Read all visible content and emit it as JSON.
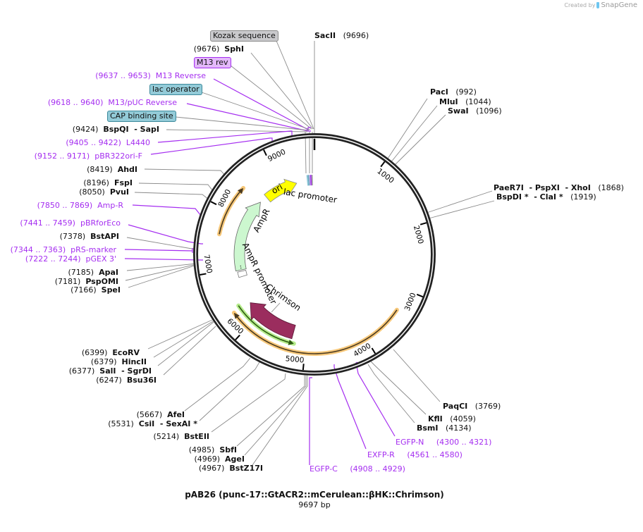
{
  "watermark": {
    "prefix": "Created by",
    "brand": "SnapGene"
  },
  "map": {
    "title": "pAB26 (punc-17::GtACR2::mCerulean::βHK::Chrimson)",
    "length": "9697 bp"
  },
  "ticks": [
    "1000",
    "2000",
    "3000",
    "4000",
    "5000",
    "6000",
    "7000",
    "8000",
    "9000"
  ],
  "features": {
    "kozak": "Kozak sequence",
    "m13_rev": "M13 rev",
    "lac_operator": "lac operator",
    "cap": "CAP binding site",
    "ori": "ori",
    "lac_promoter": "lac promoter",
    "ampr": "AmpR",
    "ampr_promoter": "AmpR promoter",
    "chrimson": "Chrimson"
  },
  "enzymes": [
    {
      "pos": "(9696)",
      "name": "SacII"
    },
    {
      "pos": "(9676)",
      "name": "SphI"
    },
    {
      "pos": "(9424)",
      "name": "BspQI  - SapI"
    },
    {
      "pos": "(8419)",
      "name": "AhdI"
    },
    {
      "pos": "(8196)",
      "name": "FspI"
    },
    {
      "pos": "(8050)",
      "name": "PvuI"
    },
    {
      "pos": "(7378)",
      "name": "BstAPI"
    },
    {
      "pos": "(7185)",
      "name": "ApaI"
    },
    {
      "pos": "(7181)",
      "name": "PspOMI"
    },
    {
      "pos": "(7166)",
      "name": "SpeI"
    },
    {
      "pos": "(6399)",
      "name": "EcoRV"
    },
    {
      "pos": "(6379)",
      "name": "HincII"
    },
    {
      "pos": "(6377)",
      "name": "SalI  - SgrDI"
    },
    {
      "pos": "(6247)",
      "name": "Bsu36I"
    },
    {
      "pos": "(5667)",
      "name": "AfeI"
    },
    {
      "pos": "(5531)",
      "name": "CsiI  - SexAI *"
    },
    {
      "pos": "(5214)",
      "name": "BstEII"
    },
    {
      "pos": "(4985)",
      "name": "SbfI"
    },
    {
      "pos": "(4969)",
      "name": "AgeI"
    },
    {
      "pos": "(4967)",
      "name": "BstZ17I"
    },
    {
      "pos": "(992)",
      "name": "PacI"
    },
    {
      "pos": "(1044)",
      "name": "MluI"
    },
    {
      "pos": "(1096)",
      "name": "SwaI"
    },
    {
      "pos": "(1868)",
      "name": "PaeR7I  - PspXI  - XhoI"
    },
    {
      "pos": "(1919)",
      "name": "BspDI *  - ClaI *"
    },
    {
      "pos": "(3769)",
      "name": "PaqCI"
    },
    {
      "pos": "(4059)",
      "name": "KflI"
    },
    {
      "pos": "(4134)",
      "name": "BsmI"
    }
  ],
  "primers": [
    {
      "pos": "(9637 .. 9653)",
      "name": "M13 Reverse"
    },
    {
      "pos": "(9618 .. 9640)",
      "name": "M13/pUC Reverse"
    },
    {
      "pos": "(9405 .. 9422)",
      "name": "L4440"
    },
    {
      "pos": "(9152 .. 9171)",
      "name": "pBR322ori-F"
    },
    {
      "pos": "(7850 .. 7869)",
      "name": "Amp-R"
    },
    {
      "pos": "(7441 .. 7459)",
      "name": "pBRforEco"
    },
    {
      "pos": "(7344 .. 7363)",
      "name": "pRS-marker"
    },
    {
      "pos": "(7222 .. 7244)",
      "name": "pGEX 3'"
    },
    {
      "pos": "(4300 .. 4321)",
      "name": "EGFP-N"
    },
    {
      "pos": "(4561 .. 4580)",
      "name": "EXFP-R"
    },
    {
      "pos": "(4908 .. 4929)",
      "name": "EGFP-C"
    }
  ],
  "colors": {
    "backbone": "#222222",
    "primer": "#a52ef0",
    "leader": "#8a8a8a",
    "orange_feature": "#f7c87a",
    "green_feature": "#b6ec8c",
    "chrimson": "#9b2d5e",
    "ampr": "#ccf7cf",
    "ori": "#ffff00"
  }
}
